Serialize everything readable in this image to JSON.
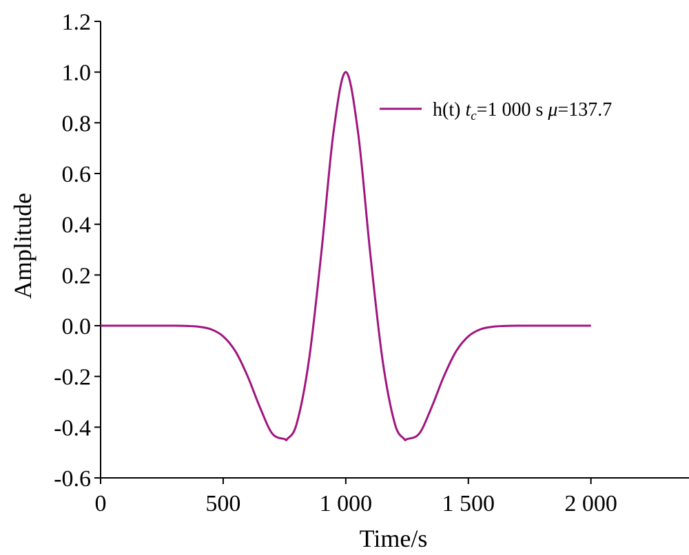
{
  "chart_data": {
    "type": "line",
    "xlabel": "Time/s",
    "ylabel": "Amplitude",
    "xlim": [
      0,
      2400
    ],
    "ylim": [
      -0.6,
      1.2
    ],
    "x_ticks": [
      0,
      500,
      1000,
      1500,
      2000
    ],
    "x_tick_labels": [
      "0",
      "500",
      "1 000",
      "1 500",
      "2 000"
    ],
    "y_ticks": [
      -0.6,
      -0.4,
      -0.2,
      0.0,
      0.2,
      0.4,
      0.6,
      0.8,
      1.0,
      1.2
    ],
    "y_tick_labels": [
      "-0.6",
      "-0.4",
      "-0.2",
      "0.0",
      "0.2",
      "0.4",
      "0.6",
      "0.8",
      "1.0",
      "1.2"
    ],
    "grid": false,
    "legend_position": "top-right",
    "series": [
      {
        "name": "h(t) t_c=1 000 s μ=137.7",
        "legend_parts": {
          "prefix": "h(t) ",
          "t": "t",
          "sub": "c",
          "mid": "=1 000 s ",
          "mu": "μ",
          "suffix": "=137.7"
        },
        "color": "#A0157F",
        "x": [
          0,
          100,
          200,
          300,
          350,
          400,
          450,
          500,
          550,
          600,
          650,
          700,
          750,
          762,
          800,
          850,
          900,
          950,
          1000,
          1050,
          1100,
          1150,
          1200,
          1238,
          1250,
          1300,
          1350,
          1400,
          1450,
          1500,
          1550,
          1600,
          1650,
          1700,
          1800,
          1900,
          2000
        ],
        "y": [
          0.0,
          0.0,
          0.0,
          0.0,
          -0.001,
          -0.004,
          -0.014,
          -0.042,
          -0.101,
          -0.2,
          -0.322,
          -0.425,
          -0.447,
          -0.446,
          -0.386,
          -0.135,
          0.284,
          0.763,
          1.0,
          0.763,
          0.284,
          -0.135,
          -0.386,
          -0.446,
          -0.447,
          -0.425,
          -0.322,
          -0.2,
          -0.101,
          -0.042,
          -0.014,
          -0.004,
          -0.001,
          0.0,
          0.0,
          0.0,
          0.0
        ]
      }
    ]
  }
}
